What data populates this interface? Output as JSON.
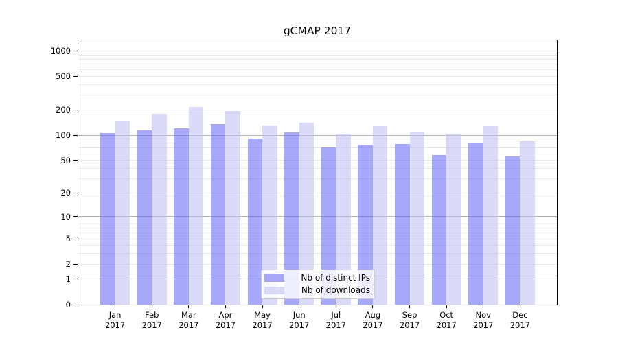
{
  "chart_data": {
    "type": "bar",
    "title": "gCMAP 2017",
    "yscale": "log1p",
    "ylim": [
      0,
      1335
    ],
    "bar_width_frac": 0.4,
    "grid": "on",
    "legend_position": "lower center",
    "categories": [
      "Jan 2017",
      "Feb 2017",
      "Mar 2017",
      "Apr 2017",
      "May 2017",
      "Jun 2017",
      "Jul 2017",
      "Aug 2017",
      "Sep 2017",
      "Oct 2017",
      "Nov 2017",
      "Dec 2017"
    ],
    "series": [
      {
        "name": "Nb of distinct IPs",
        "color": "rgba(115,115,248,0.62)",
        "legend_color": "#a8a8f6",
        "values": [
          107,
          115,
          120,
          135,
          91,
          109,
          71,
          77,
          78,
          58,
          82,
          56
        ]
      },
      {
        "name": "Nb of downloads",
        "color": "rgba(195,195,243,0.62)",
        "legend_color": "#dadaf8",
        "values": [
          148,
          179,
          216,
          192,
          130,
          141,
          105,
          129,
          110,
          102,
          127,
          85
        ]
      }
    ],
    "yticks": [
      1000,
      500,
      200,
      100,
      50,
      20,
      10,
      5,
      2,
      1,
      0
    ],
    "grid_major": [
      1,
      10,
      100,
      1000
    ],
    "grid_minor": [
      2,
      3,
      4,
      5,
      6,
      7,
      8,
      9,
      20,
      30,
      40,
      50,
      60,
      70,
      80,
      90,
      200,
      300,
      400,
      500,
      600,
      700,
      800,
      900
    ],
    "colors": {
      "grid_major": "#b3b3b3",
      "grid_minor": "#e8e8e8",
      "spine": "#000000",
      "background": "#ffffff"
    }
  }
}
